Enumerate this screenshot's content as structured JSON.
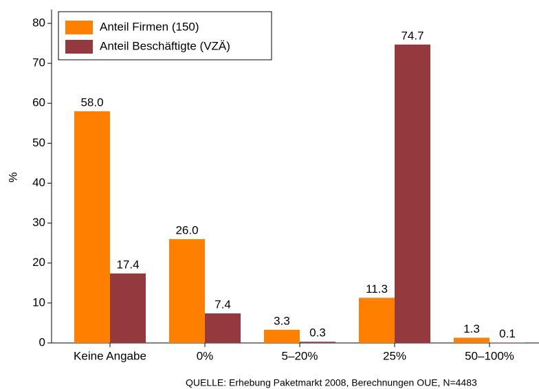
{
  "chart_data": {
    "type": "bar",
    "y_label": "%",
    "source": "QUELLE: Erhebung Paketmarkt 2008, Berechnungen OUE, N=4483",
    "categories": [
      "Keine Angabe",
      "0%",
      "5–20%",
      "25%",
      "50–100%"
    ],
    "series": [
      {
        "name": "Anteil Firmen (150)",
        "color": "#ff8000",
        "values": [
          58.0,
          26.0,
          3.3,
          11.3,
          1.3
        ],
        "value_labels": [
          "58.0",
          "26.0",
          "3.3",
          "11.3",
          "1.3"
        ]
      },
      {
        "name": "Anteil Beschäftigte (VZÄ)",
        "color": "#943a3f",
        "values": [
          17.4,
          7.4,
          0.3,
          74.7,
          0.1
        ],
        "value_labels": [
          "17.4",
          "7.4",
          "0.3",
          "74.7",
          "0.1"
        ]
      }
    ],
    "ylim": [
      0,
      80
    ],
    "yticks": [
      0,
      10,
      20,
      30,
      40,
      50,
      60,
      70,
      80
    ],
    "grid": false,
    "legend": "upper left"
  }
}
